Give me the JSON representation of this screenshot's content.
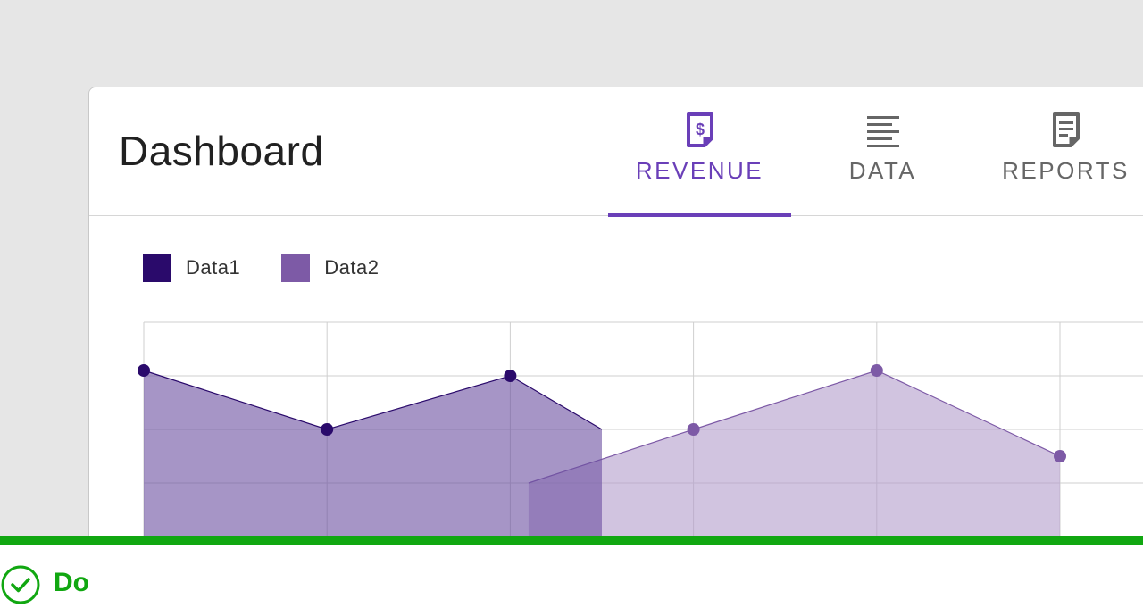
{
  "page": {
    "title": "Dashboard"
  },
  "tabs": [
    {
      "label": "REVENUE",
      "icon": "revenue-receipt-icon",
      "active": true
    },
    {
      "label": "DATA",
      "icon": "text-lines-icon",
      "active": false
    },
    {
      "label": "REPORTS",
      "icon": "document-icon",
      "active": false
    }
  ],
  "colors": {
    "accent": "#6a3fb8",
    "data1": "#2a0a6b",
    "data2": "#7d5aa6",
    "success": "#11a711"
  },
  "chart_data": {
    "type": "area",
    "title": "",
    "xlabel": "",
    "ylabel": "",
    "grid": true,
    "legend": "top-left",
    "x": [
      0,
      1,
      2,
      3,
      4,
      5
    ],
    "ylim": [
      0,
      4
    ],
    "series": [
      {
        "name": "Data1",
        "color": "#2a0a6b",
        "fill": "#6a4fa0",
        "points": [
          [
            0,
            3.1
          ],
          [
            1,
            2.0
          ],
          [
            2,
            3.0
          ],
          [
            2.5,
            2.0
          ]
        ]
      },
      {
        "name": "Data2",
        "color": "#7d5aa6",
        "fill": "#b39ccc",
        "points": [
          [
            2.1,
            1.0
          ],
          [
            3,
            2.0
          ],
          [
            4,
            3.1
          ],
          [
            5,
            1.5
          ]
        ]
      }
    ]
  },
  "footer": {
    "label": "Do",
    "icon": "check-circle-icon"
  }
}
